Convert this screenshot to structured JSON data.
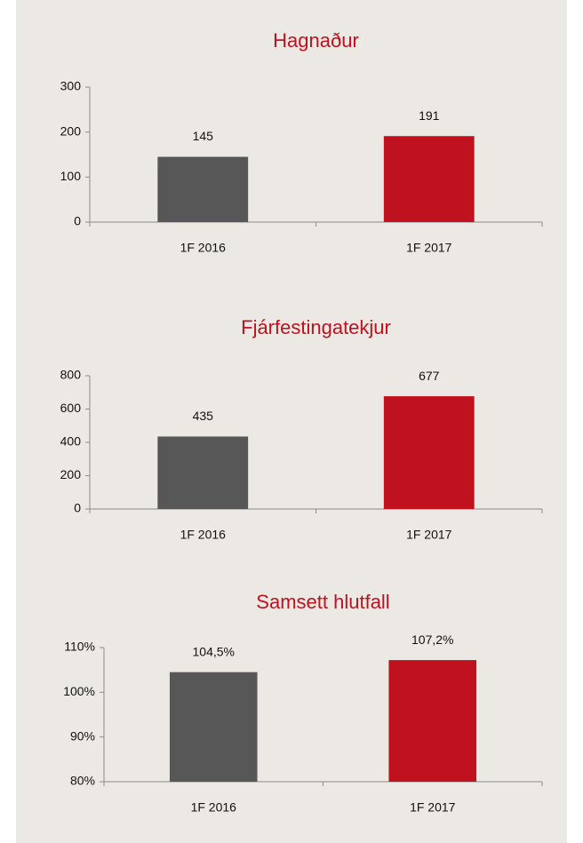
{
  "chart_data": [
    {
      "type": "bar",
      "title": "Hagnaður",
      "categories": [
        "1F 2016",
        "1F 2017"
      ],
      "values": [
        145,
        191
      ],
      "colors": [
        "#575757",
        "#c0111f"
      ],
      "ylim": [
        0,
        300
      ],
      "yticks": [
        0,
        100,
        200,
        300
      ]
    },
    {
      "type": "bar",
      "title": "Fjárfestingatekjur",
      "categories": [
        "1F 2016",
        "1F 2017"
      ],
      "values": [
        435,
        677
      ],
      "colors": [
        "#575757",
        "#c0111f"
      ],
      "ylim": [
        0,
        800
      ],
      "yticks": [
        0,
        200,
        400,
        600,
        800
      ]
    },
    {
      "type": "bar",
      "title": "Samsett hlutfall",
      "categories": [
        "1F 2016",
        "1F 2017"
      ],
      "values": [
        104.5,
        107.2
      ],
      "value_labels": [
        "104,5%",
        "107,2%"
      ],
      "colors": [
        "#575757",
        "#c0111f"
      ],
      "ylim": [
        80,
        110
      ],
      "yticks": [
        {
          "value": 80,
          "label": "80%"
        },
        {
          "value": 90,
          "label": "90%"
        },
        {
          "value": 100,
          "label": "100%"
        },
        {
          "value": 110,
          "label": "110%"
        }
      ]
    }
  ]
}
